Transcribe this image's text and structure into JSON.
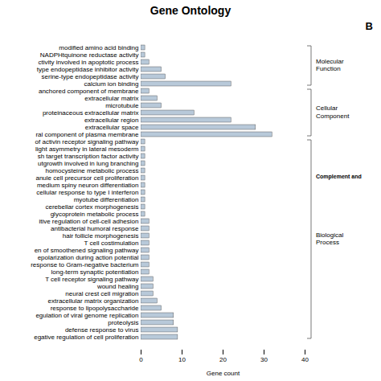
{
  "chart_data": {
    "type": "bar",
    "orientation": "horizontal",
    "title": "Gene Ontology",
    "xlabel": "Gene count",
    "categories": [
      "modified amino acid binding",
      "NADPHtquinone reductase activity",
      "ctivity involved in apoptotic process",
      "type endopeptidase inhibitor activity",
      "serine-type endopeptidase activity",
      "calcium ion binding",
      "anchored component of membrane",
      "extracellular matrix",
      "microtubule",
      "proteinaceous extracellular matrix",
      "extracellular region",
      "extracellular space",
      "ral component of plasma membrane",
      "of activin receptor signaling pathway",
      "light asymmetry in lateral mesoderm",
      "sh target transcription factor activity",
      "utgrowth involved in lung branching",
      "homocysteine metabolic process",
      "anule cell precursor cell proliferation",
      "medium spiny neuron differentiation",
      "cellular response to type I interferon",
      "myotube differentiation",
      "cerebellar cortex morphogenesis",
      "glycoprotein metabolic process",
      "itive regulation of cell-cell adhesion",
      "antibacterial humoral response",
      "hair follicle morphogenesis",
      "T cell costimulation",
      "en of smoothened signaling pathway",
      "epolarization during action potential",
      "response to Gram-negative bacterium",
      "long-term synaptic potentiation",
      "T cell receptor signaling pathway",
      "wound healing",
      "neural crest cell migration",
      "extracellular matrix organization",
      "response to lipopolysaccharide",
      "egulation of viral genome replication",
      "proteolysis",
      "defense response to virus",
      "egative regulation of cell proliferation"
    ],
    "values": [
      1,
      1,
      2,
      5,
      6,
      22,
      2,
      4,
      5,
      13,
      22,
      28,
      32,
      1,
      1,
      1,
      1,
      1,
      1,
      1,
      1,
      1,
      1,
      1,
      2,
      2,
      2,
      2,
      2,
      2,
      2,
      2,
      3,
      3,
      3,
      4,
      5,
      8,
      8,
      9,
      9
    ],
    "color": "#b8c9d9",
    "xlim": [
      0,
      40
    ],
    "xticks": [
      0,
      10,
      20,
      30,
      40
    ],
    "annotations": [
      {
        "text": "Molecular\nFunction",
        "from": "modified amino acid binding",
        "to": "calcium ion binding"
      },
      {
        "text": "Cellular\nComponent",
        "from": "anchored component of membrane",
        "to": "ral component of plasma membrane"
      },
      {
        "text": "Biological\nProcess",
        "from": "of activin receptor signaling pathway",
        "to": "egative regulation of cell proliferation"
      },
      {
        "text": "B"
      },
      {
        "text": "Complement and"
      }
    ]
  }
}
